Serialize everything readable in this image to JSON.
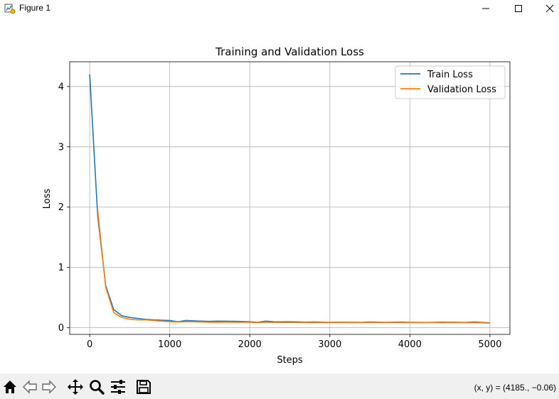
{
  "window": {
    "title": "Figure 1",
    "icon": "matplotlib-figure-icon",
    "controls": [
      "minimize-icon",
      "maximize-icon",
      "close-icon"
    ]
  },
  "toolbar": {
    "buttons": [
      "home-icon",
      "back-icon",
      "forward-icon",
      "pan-icon",
      "zoom-icon",
      "configure-subplots-icon",
      "save-icon"
    ],
    "coords": "(x, y) = (4185., −0.06)"
  },
  "colors": {
    "train": "#1f77b4",
    "validation": "#ff7f0e",
    "grid": "#b0b0b0",
    "toolbar_bg": "#f0f0f0"
  },
  "chart_data": {
    "type": "line",
    "title": "Training and Validation Loss",
    "xlabel": "Steps",
    "ylabel": "Loss",
    "xlim": [
      -250,
      5250
    ],
    "ylim": [
      -0.11,
      4.41
    ],
    "xticks": [
      0,
      1000,
      2000,
      3000,
      4000,
      5000
    ],
    "yticks": [
      0,
      1,
      2,
      3,
      4
    ],
    "grid": true,
    "legend": "upper right",
    "series": [
      {
        "name": "Train Loss",
        "color": "#1f77b4",
        "x": [
          0,
          100,
          200,
          300,
          400,
          500,
          600,
          700,
          800,
          900,
          1000,
          1100,
          1200,
          1300,
          1400,
          1500,
          1600,
          1700,
          1800,
          1900,
          2000,
          2100,
          2200,
          2300,
          2400,
          2500,
          2600,
          2700,
          2800,
          2900,
          3000,
          3100,
          3200,
          3300,
          3400,
          3500,
          3600,
          3700,
          3800,
          3900,
          4000,
          4100,
          4200,
          4300,
          4400,
          4500,
          4600,
          4700,
          4800,
          4900,
          5000
        ],
        "y": [
          4.2,
          1.85,
          0.7,
          0.3,
          0.2,
          0.17,
          0.155,
          0.14,
          0.13,
          0.125,
          0.12,
          0.1,
          0.12,
          0.115,
          0.11,
          0.105,
          0.11,
          0.108,
          0.107,
          0.104,
          0.1,
          0.09,
          0.11,
          0.1,
          0.098,
          0.1,
          0.097,
          0.093,
          0.095,
          0.092,
          0.09,
          0.093,
          0.091,
          0.089,
          0.09,
          0.095,
          0.092,
          0.09,
          0.093,
          0.094,
          0.09,
          0.088,
          0.087,
          0.09,
          0.092,
          0.091,
          0.09,
          0.088,
          0.095,
          0.09,
          0.08
        ]
      },
      {
        "name": "Validation Loss",
        "color": "#ff7f0e",
        "x": [
          100,
          200,
          300,
          400,
          500,
          600,
          700,
          800,
          900,
          1000,
          1100,
          1200,
          1300,
          1400,
          1500,
          1600,
          1700,
          1800,
          1900,
          2000,
          2100,
          2200,
          2300,
          2400,
          2500,
          2600,
          2700,
          2800,
          2900,
          3000,
          3100,
          3200,
          3300,
          3400,
          3500,
          3600,
          3700,
          3800,
          3900,
          4000,
          4100,
          4200,
          4300,
          4400,
          4500,
          4600,
          4700,
          4800,
          4900,
          5000
        ],
        "y": [
          1.95,
          0.67,
          0.25,
          0.17,
          0.14,
          0.13,
          0.13,
          0.12,
          0.11,
          0.1,
          0.095,
          0.1,
          0.1,
          0.095,
          0.09,
          0.092,
          0.09,
          0.09,
          0.09,
          0.09,
          0.085,
          0.09,
          0.088,
          0.087,
          0.088,
          0.087,
          0.086,
          0.085,
          0.086,
          0.085,
          0.086,
          0.085,
          0.084,
          0.085,
          0.087,
          0.086,
          0.085,
          0.086,
          0.085,
          0.085,
          0.084,
          0.084,
          0.085,
          0.084,
          0.085,
          0.084,
          0.083,
          0.084,
          0.083,
          0.075
        ]
      }
    ]
  }
}
